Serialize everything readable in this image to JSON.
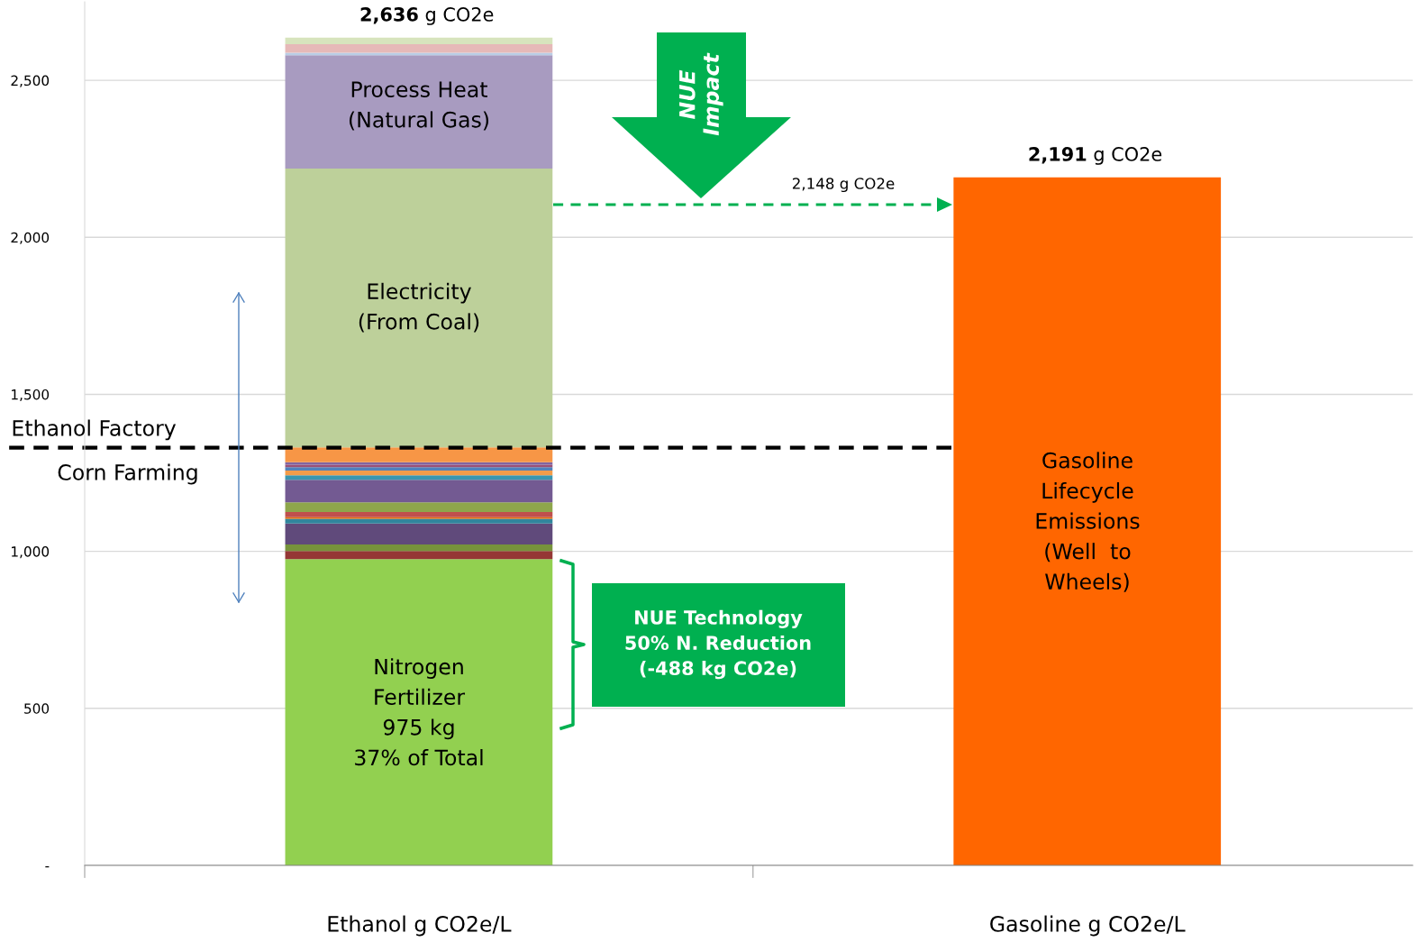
{
  "chart_data": {
    "type": "bar",
    "stacked": true,
    "categories": [
      "Ethanol g CO2e/L",
      "Gasoline g CO2e/L"
    ],
    "series": [
      {
        "color": "#92d050",
        "values": [
          975,
          null
        ]
      },
      {
        "color": "#953735",
        "values": [
          26,
          null
        ]
      },
      {
        "color": "#77933c",
        "values": [
          21,
          null
        ]
      },
      {
        "color": "#604a7b",
        "values": [
          67,
          null
        ]
      },
      {
        "color": "#31859c",
        "values": [
          15,
          null
        ]
      },
      {
        "color": "#e46c0a",
        "values": [
          5,
          null
        ]
      },
      {
        "color": "#c0504d",
        "values": [
          16,
          null
        ]
      },
      {
        "color": "#8ea64b",
        "values": [
          31,
          null
        ]
      },
      {
        "color": "#735a92",
        "values": [
          72,
          null
        ]
      },
      {
        "color": "#3a96b0",
        "values": [
          14,
          null
        ]
      },
      {
        "color": "#f39c4a",
        "values": [
          15,
          null
        ]
      },
      {
        "color": "#4f81bd",
        "values": [
          11,
          null
        ]
      },
      {
        "color": "#9b4f77",
        "values": [
          8,
          null
        ]
      },
      {
        "color": "#8064a2",
        "values": [
          8,
          null
        ]
      },
      {
        "color": "#f79646",
        "values": [
          47,
          null
        ]
      },
      {
        "color": "#bdd09a",
        "values": [
          888,
          null
        ]
      },
      {
        "color": "#a89bc0",
        "values": [
          361,
          null
        ]
      },
      {
        "color": "#b9cde5",
        "values": [
          8,
          null
        ]
      },
      {
        "color": "#e6b9b8",
        "values": [
          27,
          null
        ]
      },
      {
        "color": "#d7e4bd",
        "values": [
          21,
          null
        ]
      },
      {
        "color": "#ff6600",
        "values": [
          null,
          2191
        ]
      }
    ],
    "totals": [
      "2,636 g CO2e",
      "2,191 g CO2e"
    ],
    "ylim": [
      0,
      2750
    ],
    "yticks": [
      {
        "value": 0,
        "label": "-"
      },
      {
        "value": 500,
        "label": "500"
      },
      {
        "value": 1000,
        "label": "1,000"
      },
      {
        "value": 1500,
        "label": "1,500"
      },
      {
        "value": 2000,
        "label": "2,000"
      },
      {
        "value": 2500,
        "label": "2,500"
      }
    ],
    "grid": "y",
    "legend": false,
    "ref_lines": [
      {
        "axis": "y",
        "value": 1330,
        "label": "Ethanol Factory",
        "color": "#000000",
        "line_style": "dashed"
      }
    ],
    "annotations": [
      "Process Heat\n(Natural Gas)",
      "Electricity\n(From Coal)",
      "Nitrogen\nFertilizer\n975 kg\n37% of Total",
      "Gasoline\nLifecycle\nEmissions\n(Well  to\nWheels)",
      "2,148 g CO2e",
      "Corn Farming",
      "NUE\nImpact",
      "NUE Technology\n50% N. Reduction\n(-488 kg CO2e)"
    ]
  }
}
